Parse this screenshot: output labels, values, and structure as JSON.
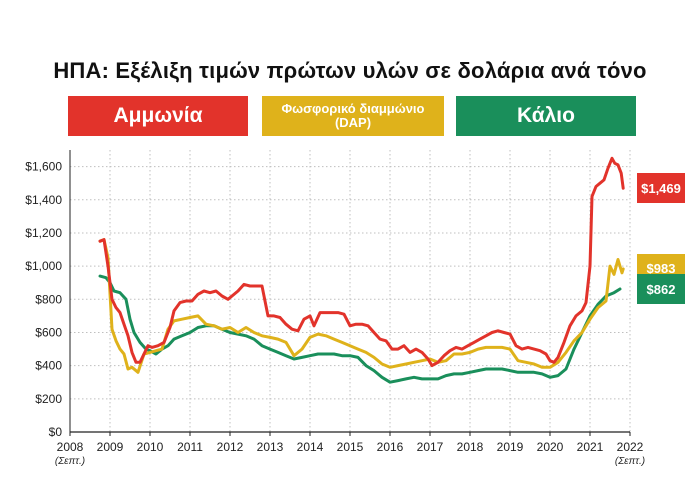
{
  "chart_data": {
    "type": "line",
    "title": "ΗΠΑ: Εξέλιξη τιμών πρώτων υλών σε δολάρια ανά τόνο",
    "xlabel": "",
    "ylabel": "",
    "xlim": [
      2008.75,
      2021.95
    ],
    "ylim": [
      0,
      1700
    ],
    "grid": true,
    "y_ticks": [
      0,
      200,
      400,
      600,
      800,
      1000,
      1200,
      1400,
      1600
    ],
    "y_tick_labels": [
      "$0",
      "$200",
      "$400",
      "$600",
      "$800",
      "$1,000",
      "$1,200",
      "$1,400",
      "$1,600"
    ],
    "x_ticks": [
      2008,
      2009,
      2010,
      2011,
      2012,
      2013,
      2014,
      2015,
      2016,
      2017,
      2018,
      2019,
      2020,
      2021,
      2022
    ],
    "x_tick_labels": [
      "2008",
      "2009",
      "2010",
      "2011",
      "2012",
      "2013",
      "2014",
      "2015",
      "2016",
      "2017",
      "2018",
      "2019",
      "2020",
      "2021",
      "2022"
    ],
    "x_sublabels": {
      "start": "(Σεπτ.)",
      "end": "(Σεπτ.)"
    },
    "legend_position": "top",
    "series": [
      {
        "name": "Αμμωνία",
        "color": "#e2332b",
        "end_label": "$1,469",
        "points": [
          [
            2008.75,
            1150
          ],
          [
            2008.85,
            1160
          ],
          [
            2008.95,
            1000
          ],
          [
            2009.05,
            800
          ],
          [
            2009.15,
            750
          ],
          [
            2009.25,
            720
          ],
          [
            2009.35,
            650
          ],
          [
            2009.45,
            580
          ],
          [
            2009.55,
            480
          ],
          [
            2009.65,
            420
          ],
          [
            2009.75,
            420
          ],
          [
            2009.85,
            470
          ],
          [
            2009.95,
            520
          ],
          [
            2010.05,
            510
          ],
          [
            2010.2,
            520
          ],
          [
            2010.35,
            540
          ],
          [
            2010.5,
            630
          ],
          [
            2010.6,
            730
          ],
          [
            2010.75,
            780
          ],
          [
            2010.9,
            790
          ],
          [
            2011.05,
            790
          ],
          [
            2011.2,
            830
          ],
          [
            2011.35,
            850
          ],
          [
            2011.5,
            840
          ],
          [
            2011.65,
            850
          ],
          [
            2011.8,
            820
          ],
          [
            2011.95,
            800
          ],
          [
            2012.05,
            820
          ],
          [
            2012.2,
            850
          ],
          [
            2012.35,
            890
          ],
          [
            2012.5,
            880
          ],
          [
            2012.65,
            880
          ],
          [
            2012.8,
            880
          ],
          [
            2012.95,
            700
          ],
          [
            2013.1,
            700
          ],
          [
            2013.25,
            690
          ],
          [
            2013.4,
            650
          ],
          [
            2013.55,
            620
          ],
          [
            2013.7,
            610
          ],
          [
            2013.85,
            680
          ],
          [
            2014.0,
            700
          ],
          [
            2014.1,
            640
          ],
          [
            2014.25,
            720
          ],
          [
            2014.4,
            720
          ],
          [
            2014.55,
            720
          ],
          [
            2014.7,
            720
          ],
          [
            2014.85,
            710
          ],
          [
            2015.0,
            640
          ],
          [
            2015.15,
            650
          ],
          [
            2015.3,
            650
          ],
          [
            2015.45,
            640
          ],
          [
            2015.6,
            600
          ],
          [
            2015.75,
            560
          ],
          [
            2015.9,
            550
          ],
          [
            2016.05,
            500
          ],
          [
            2016.2,
            500
          ],
          [
            2016.35,
            520
          ],
          [
            2016.5,
            480
          ],
          [
            2016.65,
            500
          ],
          [
            2016.8,
            480
          ],
          [
            2016.95,
            440
          ],
          [
            2017.05,
            400
          ],
          [
            2017.2,
            420
          ],
          [
            2017.35,
            460
          ],
          [
            2017.5,
            490
          ],
          [
            2017.65,
            510
          ],
          [
            2017.8,
            500
          ],
          [
            2017.95,
            520
          ],
          [
            2018.1,
            540
          ],
          [
            2018.25,
            560
          ],
          [
            2018.4,
            580
          ],
          [
            2018.55,
            600
          ],
          [
            2018.7,
            610
          ],
          [
            2018.85,
            600
          ],
          [
            2019.0,
            590
          ],
          [
            2019.15,
            520
          ],
          [
            2019.3,
            500
          ],
          [
            2019.45,
            510
          ],
          [
            2019.6,
            500
          ],
          [
            2019.75,
            490
          ],
          [
            2019.9,
            470
          ],
          [
            2020.0,
            430
          ],
          [
            2020.1,
            420
          ],
          [
            2020.2,
            450
          ],
          [
            2020.35,
            540
          ],
          [
            2020.5,
            640
          ],
          [
            2020.65,
            700
          ],
          [
            2020.8,
            730
          ],
          [
            2020.9,
            780
          ],
          [
            2021.0,
            1000
          ],
          [
            2021.05,
            1420
          ],
          [
            2021.15,
            1480
          ],
          [
            2021.25,
            1500
          ],
          [
            2021.35,
            1520
          ],
          [
            2021.45,
            1590
          ],
          [
            2021.55,
            1650
          ],
          [
            2021.62,
            1620
          ],
          [
            2021.7,
            1610
          ],
          [
            2021.78,
            1560
          ],
          [
            2021.83,
            1469
          ]
        ]
      },
      {
        "name": "Φωσφορικό διαμμώνιο (DAP)",
        "color": "#dfb21b",
        "end_label": "$983",
        "points": [
          [
            2008.75,
            1150
          ],
          [
            2008.85,
            1160
          ],
          [
            2008.95,
            1050
          ],
          [
            2009.05,
            620
          ],
          [
            2009.15,
            550
          ],
          [
            2009.25,
            500
          ],
          [
            2009.35,
            470
          ],
          [
            2009.45,
            380
          ],
          [
            2009.55,
            390
          ],
          [
            2009.7,
            360
          ],
          [
            2009.85,
            470
          ],
          [
            2010.0,
            480
          ],
          [
            2010.15,
            490
          ],
          [
            2010.3,
            500
          ],
          [
            2010.45,
            620
          ],
          [
            2010.6,
            670
          ],
          [
            2010.8,
            680
          ],
          [
            2011.0,
            690
          ],
          [
            2011.2,
            700
          ],
          [
            2011.4,
            650
          ],
          [
            2011.6,
            640
          ],
          [
            2011.8,
            620
          ],
          [
            2012.0,
            630
          ],
          [
            2012.2,
            600
          ],
          [
            2012.4,
            630
          ],
          [
            2012.6,
            600
          ],
          [
            2012.8,
            580
          ],
          [
            2013.0,
            570
          ],
          [
            2013.2,
            560
          ],
          [
            2013.4,
            540
          ],
          [
            2013.6,
            460
          ],
          [
            2013.8,
            500
          ],
          [
            2014.0,
            570
          ],
          [
            2014.2,
            590
          ],
          [
            2014.4,
            580
          ],
          [
            2014.6,
            560
          ],
          [
            2014.8,
            540
          ],
          [
            2015.0,
            520
          ],
          [
            2015.2,
            500
          ],
          [
            2015.4,
            480
          ],
          [
            2015.6,
            450
          ],
          [
            2015.8,
            410
          ],
          [
            2016.0,
            390
          ],
          [
            2016.2,
            400
          ],
          [
            2016.4,
            410
          ],
          [
            2016.6,
            420
          ],
          [
            2016.8,
            430
          ],
          [
            2017.0,
            440
          ],
          [
            2017.2,
            420
          ],
          [
            2017.4,
            430
          ],
          [
            2017.6,
            470
          ],
          [
            2017.8,
            470
          ],
          [
            2018.0,
            480
          ],
          [
            2018.2,
            500
          ],
          [
            2018.4,
            510
          ],
          [
            2018.6,
            510
          ],
          [
            2018.8,
            510
          ],
          [
            2019.0,
            500
          ],
          [
            2019.2,
            430
          ],
          [
            2019.4,
            420
          ],
          [
            2019.6,
            410
          ],
          [
            2019.8,
            390
          ],
          [
            2020.0,
            390
          ],
          [
            2020.2,
            420
          ],
          [
            2020.4,
            480
          ],
          [
            2020.6,
            550
          ],
          [
            2020.8,
            600
          ],
          [
            2021.0,
            680
          ],
          [
            2021.2,
            750
          ],
          [
            2021.4,
            790
          ],
          [
            2021.5,
            1000
          ],
          [
            2021.6,
            950
          ],
          [
            2021.7,
            1040
          ],
          [
            2021.8,
            960
          ],
          [
            2021.83,
            983
          ]
        ]
      },
      {
        "name": "Κάλιο",
        "color": "#1a8f5b",
        "end_label": "$862",
        "points": [
          [
            2008.75,
            940
          ],
          [
            2008.9,
            930
          ],
          [
            2009.0,
            900
          ],
          [
            2009.1,
            850
          ],
          [
            2009.25,
            840
          ],
          [
            2009.4,
            800
          ],
          [
            2009.5,
            680
          ],
          [
            2009.6,
            600
          ],
          [
            2009.75,
            540
          ],
          [
            2009.9,
            500
          ],
          [
            2010.0,
            490
          ],
          [
            2010.15,
            470
          ],
          [
            2010.3,
            500
          ],
          [
            2010.45,
            520
          ],
          [
            2010.6,
            560
          ],
          [
            2010.8,
            580
          ],
          [
            2011.0,
            600
          ],
          [
            2011.2,
            630
          ],
          [
            2011.4,
            640
          ],
          [
            2011.6,
            640
          ],
          [
            2011.8,
            620
          ],
          [
            2012.0,
            600
          ],
          [
            2012.2,
            590
          ],
          [
            2012.4,
            580
          ],
          [
            2012.6,
            560
          ],
          [
            2012.8,
            520
          ],
          [
            2013.0,
            500
          ],
          [
            2013.2,
            480
          ],
          [
            2013.4,
            460
          ],
          [
            2013.6,
            440
          ],
          [
            2013.8,
            450
          ],
          [
            2014.0,
            460
          ],
          [
            2014.2,
            470
          ],
          [
            2014.4,
            470
          ],
          [
            2014.6,
            470
          ],
          [
            2014.8,
            460
          ],
          [
            2015.0,
            460
          ],
          [
            2015.2,
            450
          ],
          [
            2015.4,
            400
          ],
          [
            2015.6,
            370
          ],
          [
            2015.8,
            330
          ],
          [
            2016.0,
            300
          ],
          [
            2016.2,
            310
          ],
          [
            2016.4,
            320
          ],
          [
            2016.6,
            330
          ],
          [
            2016.8,
            320
          ],
          [
            2017.0,
            320
          ],
          [
            2017.2,
            320
          ],
          [
            2017.4,
            340
          ],
          [
            2017.6,
            350
          ],
          [
            2017.8,
            350
          ],
          [
            2018.0,
            360
          ],
          [
            2018.2,
            370
          ],
          [
            2018.4,
            380
          ],
          [
            2018.6,
            380
          ],
          [
            2018.8,
            380
          ],
          [
            2019.0,
            370
          ],
          [
            2019.2,
            360
          ],
          [
            2019.4,
            360
          ],
          [
            2019.6,
            360
          ],
          [
            2019.8,
            350
          ],
          [
            2020.0,
            330
          ],
          [
            2020.2,
            340
          ],
          [
            2020.4,
            380
          ],
          [
            2020.6,
            500
          ],
          [
            2020.8,
            600
          ],
          [
            2021.0,
            700
          ],
          [
            2021.2,
            770
          ],
          [
            2021.4,
            820
          ],
          [
            2021.6,
            840
          ],
          [
            2021.75,
            862
          ]
        ]
      }
    ]
  }
}
